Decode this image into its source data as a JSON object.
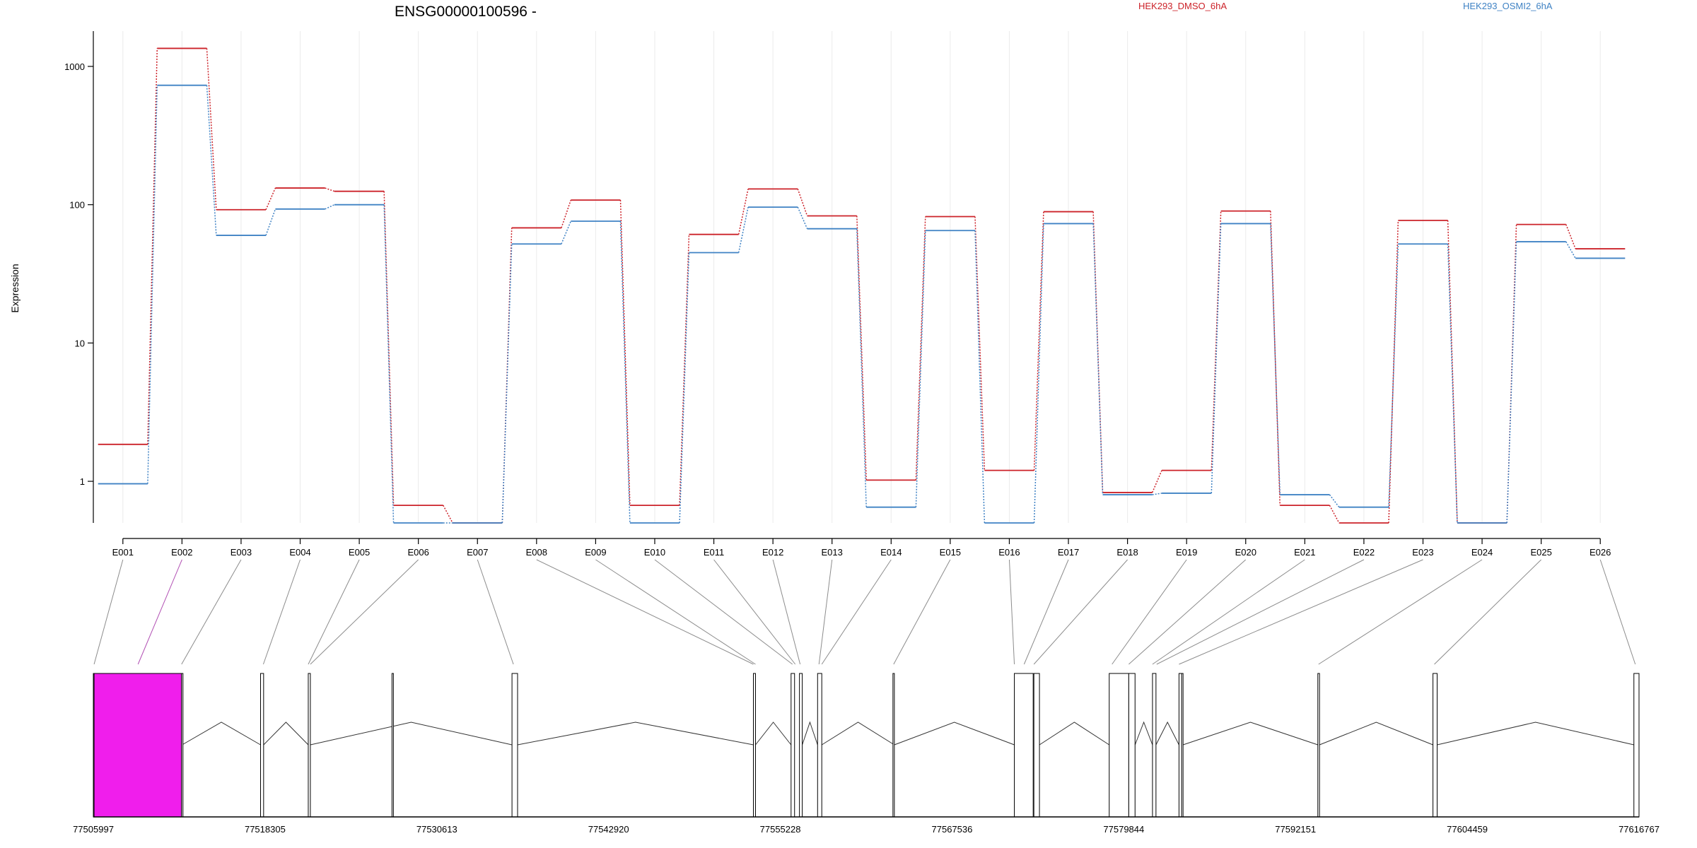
{
  "chart_data": {
    "type": "line",
    "title": "ENSG00000100596 -",
    "ylabel": "Expression",
    "yscale": "log",
    "yticks": [
      1,
      10,
      100,
      1000
    ],
    "ylim": [
      0.5,
      1800
    ],
    "grid": true,
    "legend_position": "top",
    "categories": [
      "E001",
      "E002",
      "E003",
      "E004",
      "E005",
      "E006",
      "E007",
      "E008",
      "E009",
      "E010",
      "E011",
      "E012",
      "E013",
      "E014",
      "E015",
      "E016",
      "E017",
      "E018",
      "E019",
      "E020",
      "E021",
      "E022",
      "E023",
      "E024",
      "E025",
      "E026"
    ],
    "series": [
      {
        "name": "HEK293_DMSO_6hA",
        "color": "#cc2229",
        "values": [
          1.85,
          1350,
          92,
          132,
          125,
          0.67,
          0.5,
          68,
          108,
          0.67,
          61,
          130,
          83,
          1.02,
          82,
          1.2,
          89,
          0.83,
          1.2,
          90,
          0.67,
          0.5,
          77,
          0.5,
          72,
          48
        ]
      },
      {
        "name": "HEK293_OSMI2_6hA",
        "color": "#3f82c4",
        "values": [
          0.96,
          730,
          60,
          93,
          100,
          0.5,
          0.5,
          52,
          76,
          0.5,
          45,
          96,
          67,
          0.65,
          65,
          0.5,
          73,
          0.8,
          0.82,
          73,
          0.8,
          0.65,
          52,
          0.5,
          54,
          41
        ]
      }
    ],
    "gene_model": {
      "genomic_ticks": [
        "77505997",
        "77518305",
        "77530613",
        "77542920",
        "77555228",
        "77567536",
        "77579844",
        "77592151",
        "77604459",
        "77616767"
      ],
      "range": [
        77505997,
        77616767
      ],
      "highlight_color": "#f01eec",
      "highlight_exon": "E002",
      "exons": [
        {
          "start": 77505997,
          "end": 77506050
        },
        {
          "start": 77506050,
          "end": 77512320
        },
        {
          "start": 77512320,
          "end": 77512360
        },
        {
          "start": 77517980,
          "end": 77518200
        },
        {
          "start": 77521400,
          "end": 77521550
        },
        {
          "start": 77527400,
          "end": 77527450
        },
        {
          "start": 77536000,
          "end": 77536400
        },
        {
          "start": 77553300,
          "end": 77553450
        },
        {
          "start": 77556000,
          "end": 77556250
        },
        {
          "start": 77556600,
          "end": 77556800
        },
        {
          "start": 77557900,
          "end": 77558200
        },
        {
          "start": 77563300,
          "end": 77563400
        },
        {
          "start": 77572000,
          "end": 77573350
        },
        {
          "start": 77573400,
          "end": 77573800
        },
        {
          "start": 77578800,
          "end": 77580200
        },
        {
          "start": 77580200,
          "end": 77580650
        },
        {
          "start": 77581900,
          "end": 77582150
        },
        {
          "start": 77583800,
          "end": 77584000
        },
        {
          "start": 77583990,
          "end": 77584090
        },
        {
          "start": 77593750,
          "end": 77593870
        },
        {
          "start": 77602000,
          "end": 77602300
        },
        {
          "start": 77616400,
          "end": 77616767
        }
      ],
      "introns": [
        [
          77512360,
          77517980
        ],
        [
          77518200,
          77521400
        ],
        [
          77521550,
          77536000
        ],
        [
          77536400,
          77553300
        ],
        [
          77553450,
          77556000
        ],
        [
          77556800,
          77557900
        ],
        [
          77558200,
          77563400
        ],
        [
          77563400,
          77572000
        ],
        [
          77573800,
          77578800
        ],
        [
          77580650,
          77581900
        ],
        [
          77582150,
          77583800
        ],
        [
          77584090,
          77593750
        ],
        [
          77593870,
          77602000
        ],
        [
          77602300,
          77616400
        ]
      ],
      "exon_links": [
        {
          "label": "E001",
          "pos": 77506050
        },
        {
          "label": "E002",
          "pos": 77509200
        },
        {
          "label": "E003",
          "pos": 77512320
        },
        {
          "label": "E004",
          "pos": 77518180
        },
        {
          "label": "E005",
          "pos": 77521400
        },
        {
          "label": "E006",
          "pos": 77521550
        },
        {
          "label": "E007",
          "pos": 77536100
        },
        {
          "label": "E008",
          "pos": 77553300
        },
        {
          "label": "E009",
          "pos": 77553450
        },
        {
          "label": "E010",
          "pos": 77556100
        },
        {
          "label": "E011",
          "pos": 77556300
        },
        {
          "label": "E012",
          "pos": 77556650
        },
        {
          "label": "E013",
          "pos": 77558000
        },
        {
          "label": "E014",
          "pos": 77558200
        },
        {
          "label": "E015",
          "pos": 77563350
        },
        {
          "label": "E016",
          "pos": 77572000
        },
        {
          "label": "E017",
          "pos": 77572700
        },
        {
          "label": "E018",
          "pos": 77573400
        },
        {
          "label": "E019",
          "pos": 77579000
        },
        {
          "label": "E020",
          "pos": 77580200
        },
        {
          "label": "E021",
          "pos": 77581900
        },
        {
          "label": "E022",
          "pos": 77582200
        },
        {
          "label": "E023",
          "pos": 77583800
        },
        {
          "label": "E024",
          "pos": 77593800
        },
        {
          "label": "E025",
          "pos": 77602100
        },
        {
          "label": "E026",
          "pos": 77616500
        }
      ]
    }
  }
}
